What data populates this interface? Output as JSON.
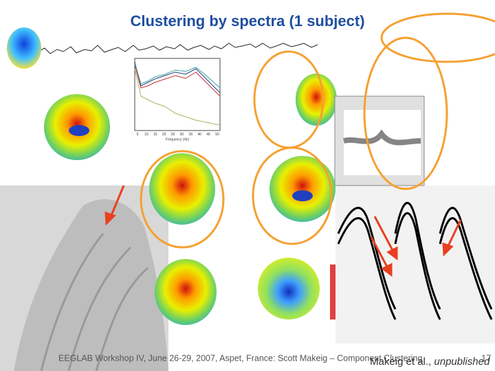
{
  "slide": {
    "title": "Clustering by spectra (1 subject)",
    "spectrum": {
      "xlabel": "Frequency (Hz)",
      "xticks": [
        "5",
        "10",
        "15",
        "20",
        "25",
        "30",
        "35",
        "40",
        "45",
        "50"
      ]
    },
    "footer": "EEGLAB Workshop IV, June 26-29, 2007, Aspet, France: Scott Makeig – Component Clustering",
    "credit": {
      "authors": "Makeig et al., ",
      "status": "unpublished"
    },
    "page_number": "17"
  }
}
